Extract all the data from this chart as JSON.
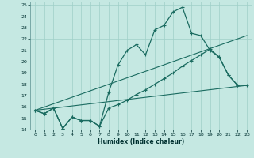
{
  "title": "",
  "xlabel": "Humidex (Indice chaleur)",
  "ylabel": "",
  "bg_color": "#c5e8e2",
  "grid_color": "#9fcfc8",
  "line_color": "#1a6b60",
  "xlim": [
    -0.5,
    23.5
  ],
  "ylim": [
    14,
    25.3
  ],
  "xticks": [
    0,
    1,
    2,
    3,
    4,
    5,
    6,
    7,
    8,
    9,
    10,
    11,
    12,
    13,
    14,
    15,
    16,
    17,
    18,
    19,
    20,
    21,
    22,
    23
  ],
  "yticks": [
    14,
    15,
    16,
    17,
    18,
    19,
    20,
    21,
    22,
    23,
    24,
    25
  ],
  "line1_x": [
    0,
    1,
    2,
    3,
    4,
    5,
    6,
    7,
    8,
    9,
    10,
    11,
    12,
    13,
    14,
    15,
    16,
    17,
    18,
    19,
    20,
    21,
    22
  ],
  "line1_y": [
    15.7,
    15.4,
    15.9,
    14.1,
    15.1,
    14.8,
    14.8,
    14.3,
    17.3,
    19.7,
    21.0,
    21.5,
    20.6,
    22.8,
    23.2,
    24.4,
    24.8,
    22.5,
    22.3,
    21.0,
    20.4,
    18.8,
    17.9
  ],
  "line2_x": [
    0,
    1,
    2,
    3,
    4,
    5,
    6,
    7,
    8,
    9,
    10,
    11,
    12,
    13,
    14,
    15,
    16,
    17,
    18,
    19,
    20,
    21,
    22,
    23
  ],
  "line2_y": [
    15.7,
    15.4,
    15.9,
    14.1,
    15.1,
    14.8,
    14.8,
    14.3,
    15.9,
    16.2,
    16.6,
    17.1,
    17.5,
    18.0,
    18.5,
    19.0,
    19.6,
    20.1,
    20.6,
    21.1,
    20.4,
    18.8,
    17.9,
    17.9
  ],
  "line3_x": [
    0,
    23
  ],
  "line3_y": [
    15.7,
    22.3
  ],
  "line4_x": [
    0,
    23
  ],
  "line4_y": [
    15.7,
    17.9
  ]
}
